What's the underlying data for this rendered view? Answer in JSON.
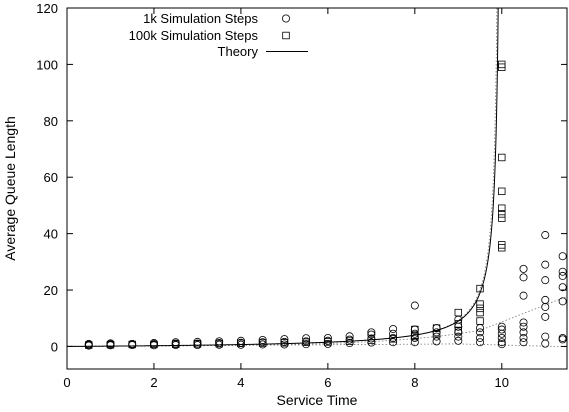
{
  "chart_data": {
    "type": "scatter",
    "xlabel": "Service Time",
    "ylabel": "Average Queue Length",
    "xlim": [
      0,
      11.5
    ],
    "ylim": [
      -8,
      120
    ],
    "x_ticks": [
      0,
      2,
      4,
      6,
      8,
      10
    ],
    "y_ticks": [
      0,
      20,
      40,
      60,
      80,
      100,
      120
    ],
    "grid": false,
    "legend_position": "top-left",
    "series": [
      {
        "name": "1k Simulation Steps",
        "marker": "circle",
        "points": [
          [
            0.5,
            0.3
          ],
          [
            0.5,
            0.6
          ],
          [
            0.5,
            0.9
          ],
          [
            1,
            0.4
          ],
          [
            1,
            0.8
          ],
          [
            1,
            1.1
          ],
          [
            1.5,
            0.5
          ],
          [
            1.5,
            0.9
          ],
          [
            2,
            0.4
          ],
          [
            2,
            0.8
          ],
          [
            2,
            1.2
          ],
          [
            2.5,
            0.5
          ],
          [
            2.5,
            1.0
          ],
          [
            2.5,
            1.5
          ],
          [
            3,
            0.5
          ],
          [
            3,
            1.0
          ],
          [
            3,
            1.6
          ],
          [
            3.5,
            0.6
          ],
          [
            3.5,
            1.2
          ],
          [
            3.5,
            1.8
          ],
          [
            4,
            0.6
          ],
          [
            4,
            1.3
          ],
          [
            4,
            2.0
          ],
          [
            4.5,
            0.7
          ],
          [
            4.5,
            1.5
          ],
          [
            4.5,
            2.3
          ],
          [
            5,
            0.7
          ],
          [
            5,
            1.6
          ],
          [
            5,
            2.6
          ],
          [
            5.5,
            0.8
          ],
          [
            5.5,
            1.8
          ],
          [
            5.5,
            2.9
          ],
          [
            6,
            0.9
          ],
          [
            6,
            2.0
          ],
          [
            6,
            3.0
          ],
          [
            6.5,
            1.2
          ],
          [
            6.5,
            2.4
          ],
          [
            6.5,
            3.6
          ],
          [
            7,
            1.4
          ],
          [
            7,
            2.8
          ],
          [
            7,
            4.2
          ],
          [
            7,
            5.0
          ],
          [
            7.5,
            1.5
          ],
          [
            7.5,
            3.0
          ],
          [
            7.5,
            4.5
          ],
          [
            7.5,
            6.2
          ],
          [
            8,
            1.5
          ],
          [
            8,
            3.0
          ],
          [
            8,
            4.5
          ],
          [
            8,
            6.0
          ],
          [
            8,
            14.5
          ],
          [
            8.5,
            1.8
          ],
          [
            8.5,
            3.5
          ],
          [
            8.5,
            5.0
          ],
          [
            8.5,
            6.5
          ],
          [
            9,
            2.0
          ],
          [
            9,
            3.5
          ],
          [
            9,
            5.0
          ],
          [
            9,
            7.0
          ],
          [
            9,
            9.5
          ],
          [
            9.5,
            1.5
          ],
          [
            9.5,
            3.0
          ],
          [
            9.5,
            5.0
          ],
          [
            9.5,
            6.5
          ],
          [
            10,
            0.8
          ],
          [
            10,
            1.5
          ],
          [
            10,
            3.0
          ],
          [
            10,
            4.5
          ],
          [
            10,
            6.0
          ],
          [
            10,
            7.0
          ],
          [
            10.5,
            1.5
          ],
          [
            10.5,
            3.0
          ],
          [
            10.5,
            5.0
          ],
          [
            10.5,
            7.0
          ],
          [
            10.5,
            8.5
          ],
          [
            10.5,
            18.0
          ],
          [
            10.5,
            24.5
          ],
          [
            10.5,
            27.5
          ],
          [
            11,
            1.0
          ],
          [
            11,
            3.5
          ],
          [
            11,
            10.5
          ],
          [
            11,
            14.0
          ],
          [
            11,
            16.5
          ],
          [
            11,
            23.5
          ],
          [
            11,
            29.0
          ],
          [
            11,
            39.5
          ],
          [
            11.4,
            2.5
          ],
          [
            11.4,
            3.0
          ],
          [
            11.4,
            16.0
          ],
          [
            11.4,
            21.0
          ],
          [
            11.4,
            25.0
          ],
          [
            11.4,
            26.5
          ],
          [
            11.4,
            32.0
          ]
        ]
      },
      {
        "name": "100k Simulation Steps",
        "marker": "square",
        "points": [
          [
            0.5,
            0.5
          ],
          [
            1,
            0.6
          ],
          [
            1.5,
            0.7
          ],
          [
            2,
            0.7
          ],
          [
            2.5,
            0.8
          ],
          [
            3,
            0.9
          ],
          [
            3.5,
            1.0
          ],
          [
            4,
            1.1
          ],
          [
            4.5,
            1.2
          ],
          [
            5,
            1.3
          ],
          [
            5.5,
            1.5
          ],
          [
            6,
            1.6
          ],
          [
            6.5,
            1.9
          ],
          [
            7,
            2.2
          ],
          [
            7.5,
            2.7
          ],
          [
            8,
            3.5
          ],
          [
            8,
            4.0
          ],
          [
            8,
            6.0
          ],
          [
            8.5,
            4.5
          ],
          [
            8.5,
            6.5
          ],
          [
            9,
            5.5
          ],
          [
            9,
            8.0
          ],
          [
            9,
            12.0
          ],
          [
            9.5,
            9.0
          ],
          [
            9.5,
            12.0
          ],
          [
            9.5,
            13.5
          ],
          [
            9.5,
            15.0
          ],
          [
            9.5,
            20.5
          ],
          [
            10,
            35.0
          ],
          [
            10,
            36.0
          ],
          [
            10,
            45.5
          ],
          [
            10,
            47.0
          ],
          [
            10,
            49.0
          ],
          [
            10,
            55.0
          ],
          [
            10,
            67.0
          ],
          [
            10,
            99.0
          ],
          [
            10,
            100.0
          ]
        ]
      },
      {
        "name": "Theory",
        "marker": "line"
      }
    ]
  }
}
